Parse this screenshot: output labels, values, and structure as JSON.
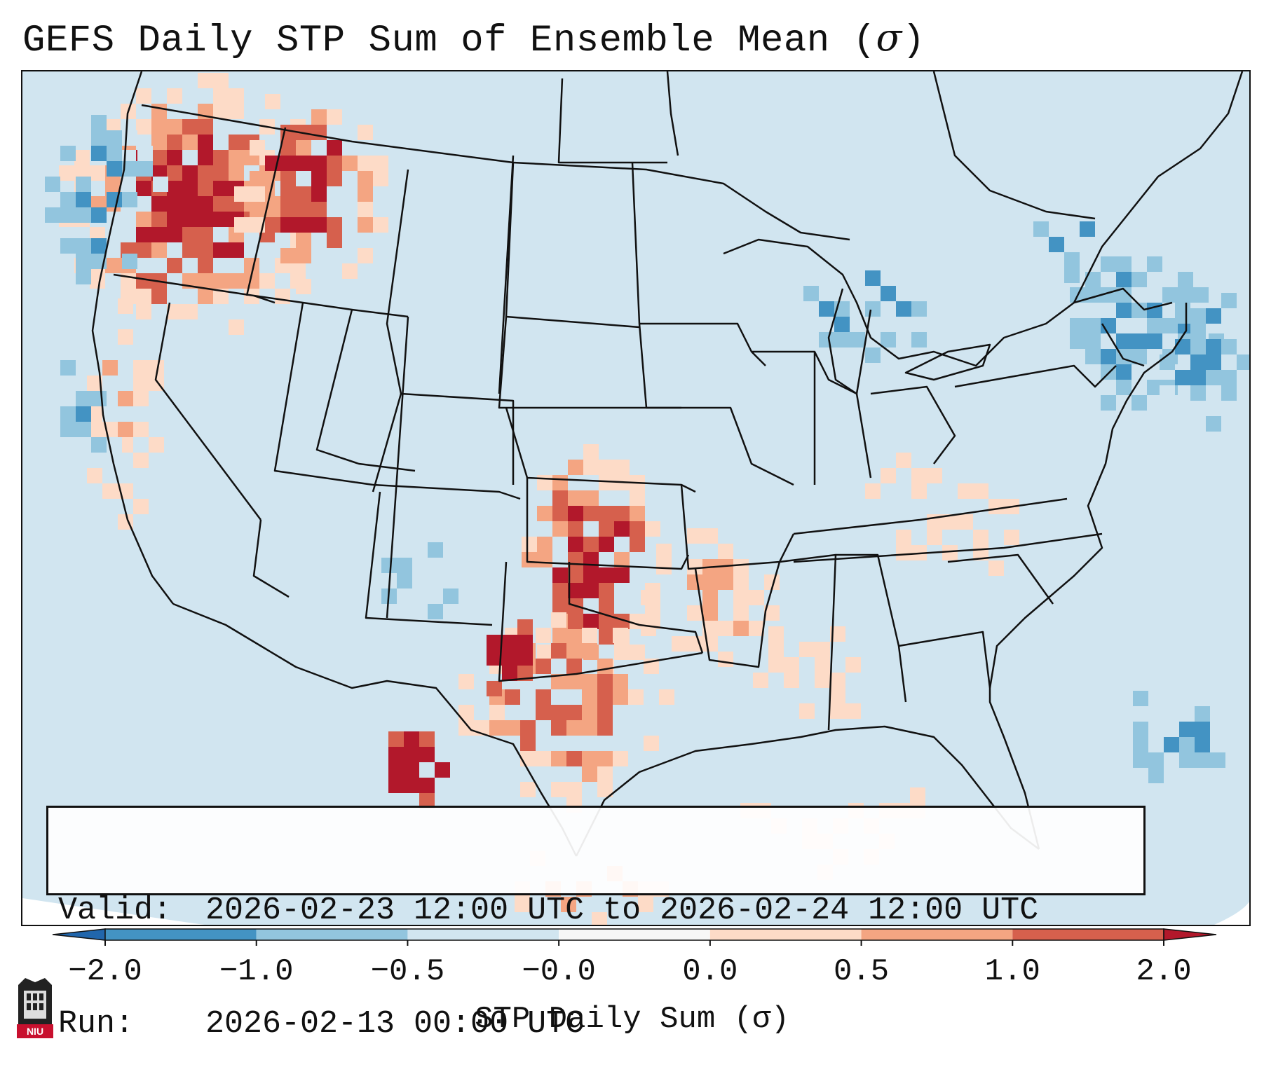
{
  "title": "GEFS Daily STP Sum of Ensemble Mean (",
  "title_symbol": "σ",
  "title_close": ")",
  "info": {
    "valid_label": "Valid:",
    "valid_value": "2026-02-23 12:00 UTC to 2026-02-24 12:00 UTC",
    "run_label": "Run:",
    "run_value": "2026-02-13 00:00 UTC"
  },
  "colorbar": {
    "label": "STP Daily Sum (σ)",
    "ticks": [
      "−2.0",
      "−1.0",
      "−0.5",
      "−0.0",
      "0.0",
      "0.5",
      "1.0",
      "2.0"
    ],
    "bins": [
      {
        "range": "< −2.0",
        "color": "#2166ac"
      },
      {
        "range": "−2.0 to −1.0",
        "color": "#4393c3"
      },
      {
        "range": "−1.0 to −0.5",
        "color": "#92c5de"
      },
      {
        "range": "−0.5 to −0.0",
        "color": "#d1e5f0"
      },
      {
        "range": "−0.0 to 0.0",
        "color": "#f7f7f7"
      },
      {
        "range": "0.0 to 0.5",
        "color": "#fddbc7"
      },
      {
        "range": "0.5 to 1.0",
        "color": "#f4a582"
      },
      {
        "range": "1.0 to 2.0",
        "color": "#d6604d"
      },
      {
        "range": "> 2.0",
        "color": "#b2182b"
      }
    ]
  },
  "map": {
    "background_color": "#d1e5f0",
    "regions": [
      {
        "name": "pacific-northwest",
        "level": "high",
        "color": "#b2182b"
      },
      {
        "name": "southern-plains",
        "level": "high",
        "color": "#b2182b"
      },
      {
        "name": "west-texas",
        "level": "high",
        "color": "#b2182b"
      },
      {
        "name": "northeast-great-lakes",
        "level": "low",
        "color": "#92c5de"
      }
    ]
  },
  "logo": {
    "text": "NIU"
  }
}
